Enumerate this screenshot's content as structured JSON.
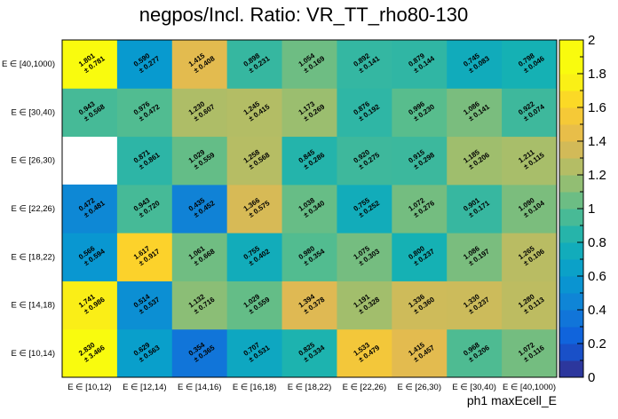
{
  "chart_data": {
    "type": "heatmap",
    "title": "negpos/Incl. Ratio: VR_TT_rho80-130",
    "xlabel": "ph1 maxEcell_E",
    "ylabel": "",
    "x_categories": [
      "E ∈ [10,12)",
      "E ∈ [12,14)",
      "E ∈ [14,16)",
      "E ∈ [16,18)",
      "E ∈ [18,22)",
      "E ∈ [22,26)",
      "E ∈ [26,30)",
      "E ∈ [30,40)",
      "E ∈ [40,1000)"
    ],
    "y_categories": [
      "E ∈ [10,14)",
      "E ∈ [14,18)",
      "E ∈ [18,22)",
      "E ∈ [22,26)",
      "E ∈ [26,30)",
      "E ∈ [30,40)",
      "E ∈ [40,1000)"
    ],
    "zlim": [
      0,
      2
    ],
    "z_ticks": [
      "0",
      "0.2",
      "0.4",
      "0.6",
      "0.8",
      "1",
      "1.2",
      "1.4",
      "1.6",
      "1.8",
      "2"
    ],
    "values": [
      [
        2.83,
        0.629,
        0.354,
        0.707,
        0.825,
        1.533,
        1.415,
        0.968,
        1.072
      ],
      [
        1.741,
        0.514,
        1.132,
        1.029,
        1.394,
        1.191,
        1.336,
        1.33,
        1.28
      ],
      [
        0.566,
        1.617,
        1.061,
        0.755,
        0.98,
        1.075,
        0.8,
        1.086,
        1.265
      ],
      [
        0.472,
        0.943,
        0.435,
        1.366,
        1.038,
        0.755,
        1.072,
        0.901,
        1.09
      ],
      [
        null,
        0.871,
        1.029,
        1.258,
        0.845,
        0.92,
        0.915,
        1.185,
        1.211
      ],
      [
        0.943,
        0.976,
        1.23,
        1.245,
        1.173,
        0.876,
        0.996,
        1.086,
        0.922
      ],
      [
        1.801,
        0.59,
        1.415,
        0.898,
        1.054,
        0.892,
        0.879,
        0.745,
        0.798
      ]
    ],
    "errors": [
      [
        3.466,
        0.563,
        0.365,
        0.531,
        0.334,
        0.479,
        0.457,
        0.206,
        0.116
      ],
      [
        0.986,
        0.537,
        0.716,
        0.559,
        0.378,
        0.328,
        0.36,
        0.237,
        0.113
      ],
      [
        0.594,
        0.917,
        0.668,
        0.402,
        0.354,
        0.303,
        0.237,
        0.197,
        0.106
      ],
      [
        0.481,
        0.72,
        0.452,
        0.575,
        0.34,
        0.252,
        0.276,
        0.171,
        0.104
      ],
      [
        null,
        0.861,
        0.559,
        0.568,
        0.286,
        0.275,
        0.298,
        0.206,
        0.115
      ],
      [
        0.568,
        0.472,
        0.607,
        0.415,
        0.269,
        0.192,
        0.23,
        0.141,
        0.074
      ],
      [
        0.781,
        0.277,
        0.408,
        0.231,
        0.169,
        0.141,
        0.144,
        0.083,
        0.046
      ]
    ],
    "grid": false,
    "legend": "colorbar-right"
  }
}
